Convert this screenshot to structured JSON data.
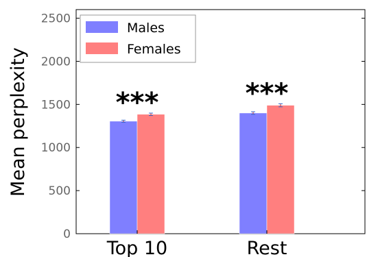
{
  "chart_data": {
    "type": "bar",
    "categories": [
      "Top 10",
      "Rest"
    ],
    "series": [
      {
        "name": "Males",
        "color": "#7f7fff",
        "values": [
          1305,
          1400
        ],
        "errors": [
          12,
          15
        ]
      },
      {
        "name": "Females",
        "color": "#ff7f7f",
        "values": [
          1385,
          1490
        ],
        "errors": [
          14,
          18
        ]
      }
    ],
    "ylabel": "Mean perplexity",
    "ylim": [
      0,
      2600
    ],
    "yticks": [
      0,
      500,
      1000,
      1500,
      2000,
      2500
    ],
    "annotations": [
      "***",
      "***"
    ],
    "legend_position": "top-left",
    "grid": false
  }
}
